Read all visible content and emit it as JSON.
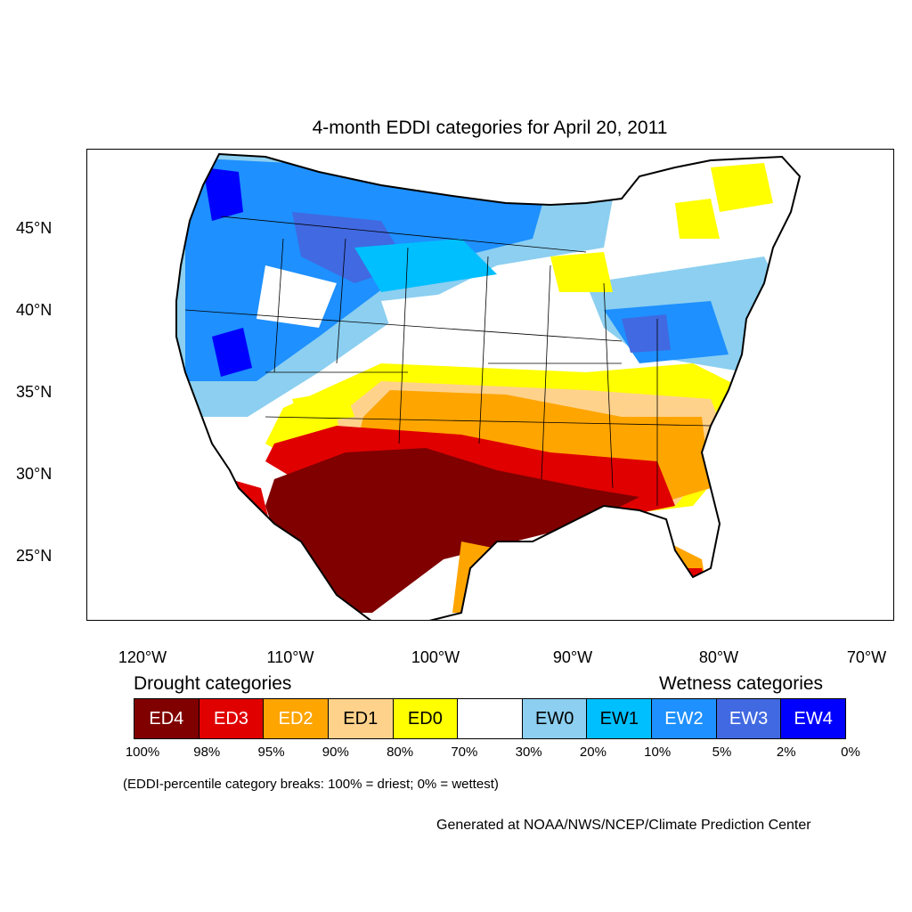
{
  "title": "4-month EDDI categories for April 20, 2011",
  "map": {
    "latitude_labels": [
      "45°N",
      "40°N",
      "35°N",
      "30°N",
      "25°N"
    ],
    "longitude_labels": [
      "120°W",
      "110°W",
      "100°W",
      "90°W",
      "80°W",
      "70°W"
    ],
    "fill_colors": {
      "ED4": "#800000",
      "ED3": "#e00000",
      "ED2": "#ffa500",
      "ED1": "#ffd28c",
      "ED0": "#ffff00",
      "neutral": "#ffffff",
      "EW0": "#8ccff0",
      "EW1": "#00bfff",
      "EW2": "#1e90ff",
      "EW3": "#4169e1",
      "EW4": "#0000ff"
    },
    "regional_pattern": {
      "northwest_and_northern_plains": "wet (EW1-EW3)",
      "great_lakes_and_northeast": "wet (EW0-EW3)",
      "southwest_texas_gulf_coast": "dry (ED2-ED4)",
      "southeast": "dry (ED0-ED2)",
      "central_plains": "near normal"
    }
  },
  "legend": {
    "drought_heading": "Drought categories",
    "wetness_heading": "Wetness categories",
    "categories": [
      {
        "label": "ED4",
        "color": "#800000",
        "text_color": "#ffffff"
      },
      {
        "label": "ED3",
        "color": "#e00000",
        "text_color": "#ffffff"
      },
      {
        "label": "ED2",
        "color": "#ffa500",
        "text_color": "#ffffff"
      },
      {
        "label": "ED1",
        "color": "#ffd28c",
        "text_color": "#000000"
      },
      {
        "label": "ED0",
        "color": "#ffff00",
        "text_color": "#000000"
      },
      {
        "label": "",
        "color": "#ffffff",
        "text_color": "#000000"
      },
      {
        "label": "EW0",
        "color": "#8ccff0",
        "text_color": "#000000"
      },
      {
        "label": "EW1",
        "color": "#00bfff",
        "text_color": "#000000"
      },
      {
        "label": "EW2",
        "color": "#1e90ff",
        "text_color": "#ffffff"
      },
      {
        "label": "EW3",
        "color": "#4169e1",
        "text_color": "#ffffff"
      },
      {
        "label": "EW4",
        "color": "#0000ff",
        "text_color": "#ffffff"
      }
    ],
    "breaks": [
      "100%",
      "98%",
      "95%",
      "90%",
      "80%",
      "70%",
      "30%",
      "20%",
      "10%",
      "5%",
      "2%",
      "0%"
    ]
  },
  "note": "(EDDI-percentile category breaks: 100% = driest; 0% = wettest)",
  "credit": "Generated at NOAA/NWS/NCEP/Climate Prediction Center"
}
